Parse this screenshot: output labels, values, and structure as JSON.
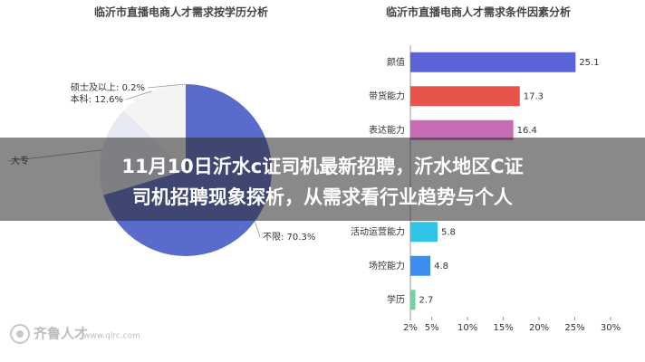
{
  "chart_data": [
    {
      "type": "pie",
      "title": "临沂市直播电商人才需求按学历分析",
      "labels": [
        "不限: 70.3%",
        "大专",
        "本科: 12.6%",
        "硕士及以上: 0.2%"
      ],
      "values": [
        70.3,
        16.9,
        12.6,
        0.2
      ],
      "colors": [
        "#5a6ccb",
        "#e6e9f2",
        "#f4f4f6",
        "#eeeeee"
      ]
    },
    {
      "type": "hbar",
      "title": "临沂市直播电商人才需求条件因素分析",
      "categories": [
        "颜值",
        "带货能力",
        "表达能力",
        null,
        null,
        "活动运营能力",
        "场控能力",
        "学历"
      ],
      "values": [
        25.1,
        17.3,
        16.4,
        null,
        null,
        5.8,
        4.8,
        2.7
      ],
      "colors": [
        "#5b63d6",
        "#e8534c",
        "#c76cb4",
        "#f0a44a",
        "#8fc46a",
        "#2fc3e8",
        "#3d8cf0",
        "#6fd49d"
      ],
      "xlim": [
        2,
        30
      ],
      "xticks": [
        {
          "value": 2,
          "label": "2%"
        },
        {
          "value": 5,
          "label": "5%"
        },
        {
          "value": 10,
          "label": "10%"
        },
        {
          "value": 15,
          "label": "15%"
        },
        {
          "value": 20,
          "label": "20%"
        },
        {
          "value": 25,
          "label": "25%"
        },
        {
          "value": 30,
          "label": "30%"
        }
      ]
    }
  ],
  "overlay": {
    "lines": [
      "11月10日沂水c证司机最新招聘，沂水地区C证",
      "司机招聘现象探析，从需求看行业趋势与个人"
    ]
  },
  "watermark": {
    "brand": "齐鲁人才",
    "url": "www.qlrc.com"
  }
}
